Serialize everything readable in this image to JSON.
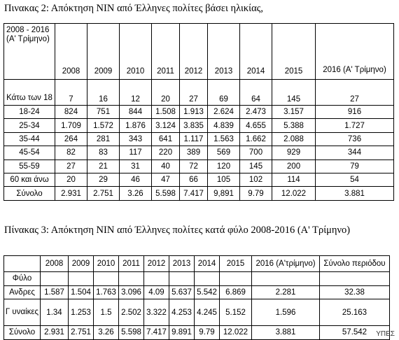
{
  "table1": {
    "caption": "Πινακας 2: Απόκτηση ΝΙΝ από Έλληνες πολίτες βάσει ηλικίας,",
    "corner_header": "2008 - 2016 (Α' Τρίμηνο)",
    "columns": [
      "2008",
      "2009",
      "2010",
      "2011",
      "2012",
      "2013",
      "2014",
      "2015",
      "2016 (Α' Τρίμηνο)"
    ],
    "rows": [
      {
        "label": "Κάτω των 18",
        "values": [
          "7",
          "16",
          "12",
          "20",
          "27",
          "69",
          "64",
          "145",
          "27"
        ]
      },
      {
        "label": "18-24",
        "values": [
          "824",
          "751",
          "844",
          "1.508",
          "1.913",
          "2.624",
          "2.473",
          "3.157",
          "916"
        ]
      },
      {
        "label": "25-34",
        "values": [
          "1.709",
          "1.572",
          "1.876",
          "3.124",
          "3.835",
          "4.839",
          "4.655",
          "5.388",
          "1.727"
        ]
      },
      {
        "label": "35-44",
        "values": [
          "264",
          "281",
          "343",
          "641",
          "1.117",
          "1.563",
          "1.662",
          "2.088",
          "736"
        ]
      },
      {
        "label": "45-54",
        "values": [
          "82",
          "83",
          "117",
          "220",
          "389",
          "569",
          "700",
          "929",
          "344"
        ]
      },
      {
        "label": "55-59",
        "values": [
          "27",
          "21",
          "31",
          "40",
          "72",
          "120",
          "145",
          "200",
          "79"
        ]
      },
      {
        "label": "60 και άνω",
        "values": [
          "20",
          "29",
          "46",
          "47",
          "66",
          "105",
          "102",
          "114",
          "54"
        ]
      },
      {
        "label": "Σύνολο",
        "values": [
          "2.931",
          "2.751",
          "3.26",
          "5.598",
          "7.417",
          "9,891",
          "9.79",
          "12.022",
          "3.881"
        ]
      }
    ]
  },
  "table2": {
    "caption": "Πίνακας 3: Απόκτηση ΝΙΝ από Έλληνες πολίτες κατά φύλο 2008-2016 (Α' Τρίμηνο)",
    "corner_header": "",
    "columns": [
      "2008",
      "2009",
      "2010",
      "2011",
      "2012",
      "2013",
      "2014",
      "2015",
      "2016 (Α'τρίμηνο)",
      "Σύνολο περιόδου"
    ],
    "rows": [
      {
        "label": "Φύλο",
        "values": [
          "",
          "",
          "",
          "",
          "",
          "",
          "",
          "",
          "",
          ""
        ]
      },
      {
        "label": "Ανδρες",
        "values": [
          "1.587",
          "1.504",
          "1.763",
          "3.096",
          "4.09",
          "5.637",
          "5.542",
          "6.869",
          "2.281",
          "32.38"
        ]
      },
      {
        "label": "Γ υναίκες",
        "values": [
          "1.34",
          "1.253",
          "1.5",
          "2.502",
          "3.322",
          "4.253",
          "4.245",
          "5.152",
          "1.596",
          "25.163"
        ]
      },
      {
        "label": "Σύνολο",
        "values": [
          "2.931",
          "2.751",
          "3.26",
          "5.598",
          "7.417",
          "9.891",
          "9.79",
          "12.022",
          "3.881",
          "57.542"
        ]
      }
    ]
  },
  "watermark": "ΥΠΕΣ"
}
